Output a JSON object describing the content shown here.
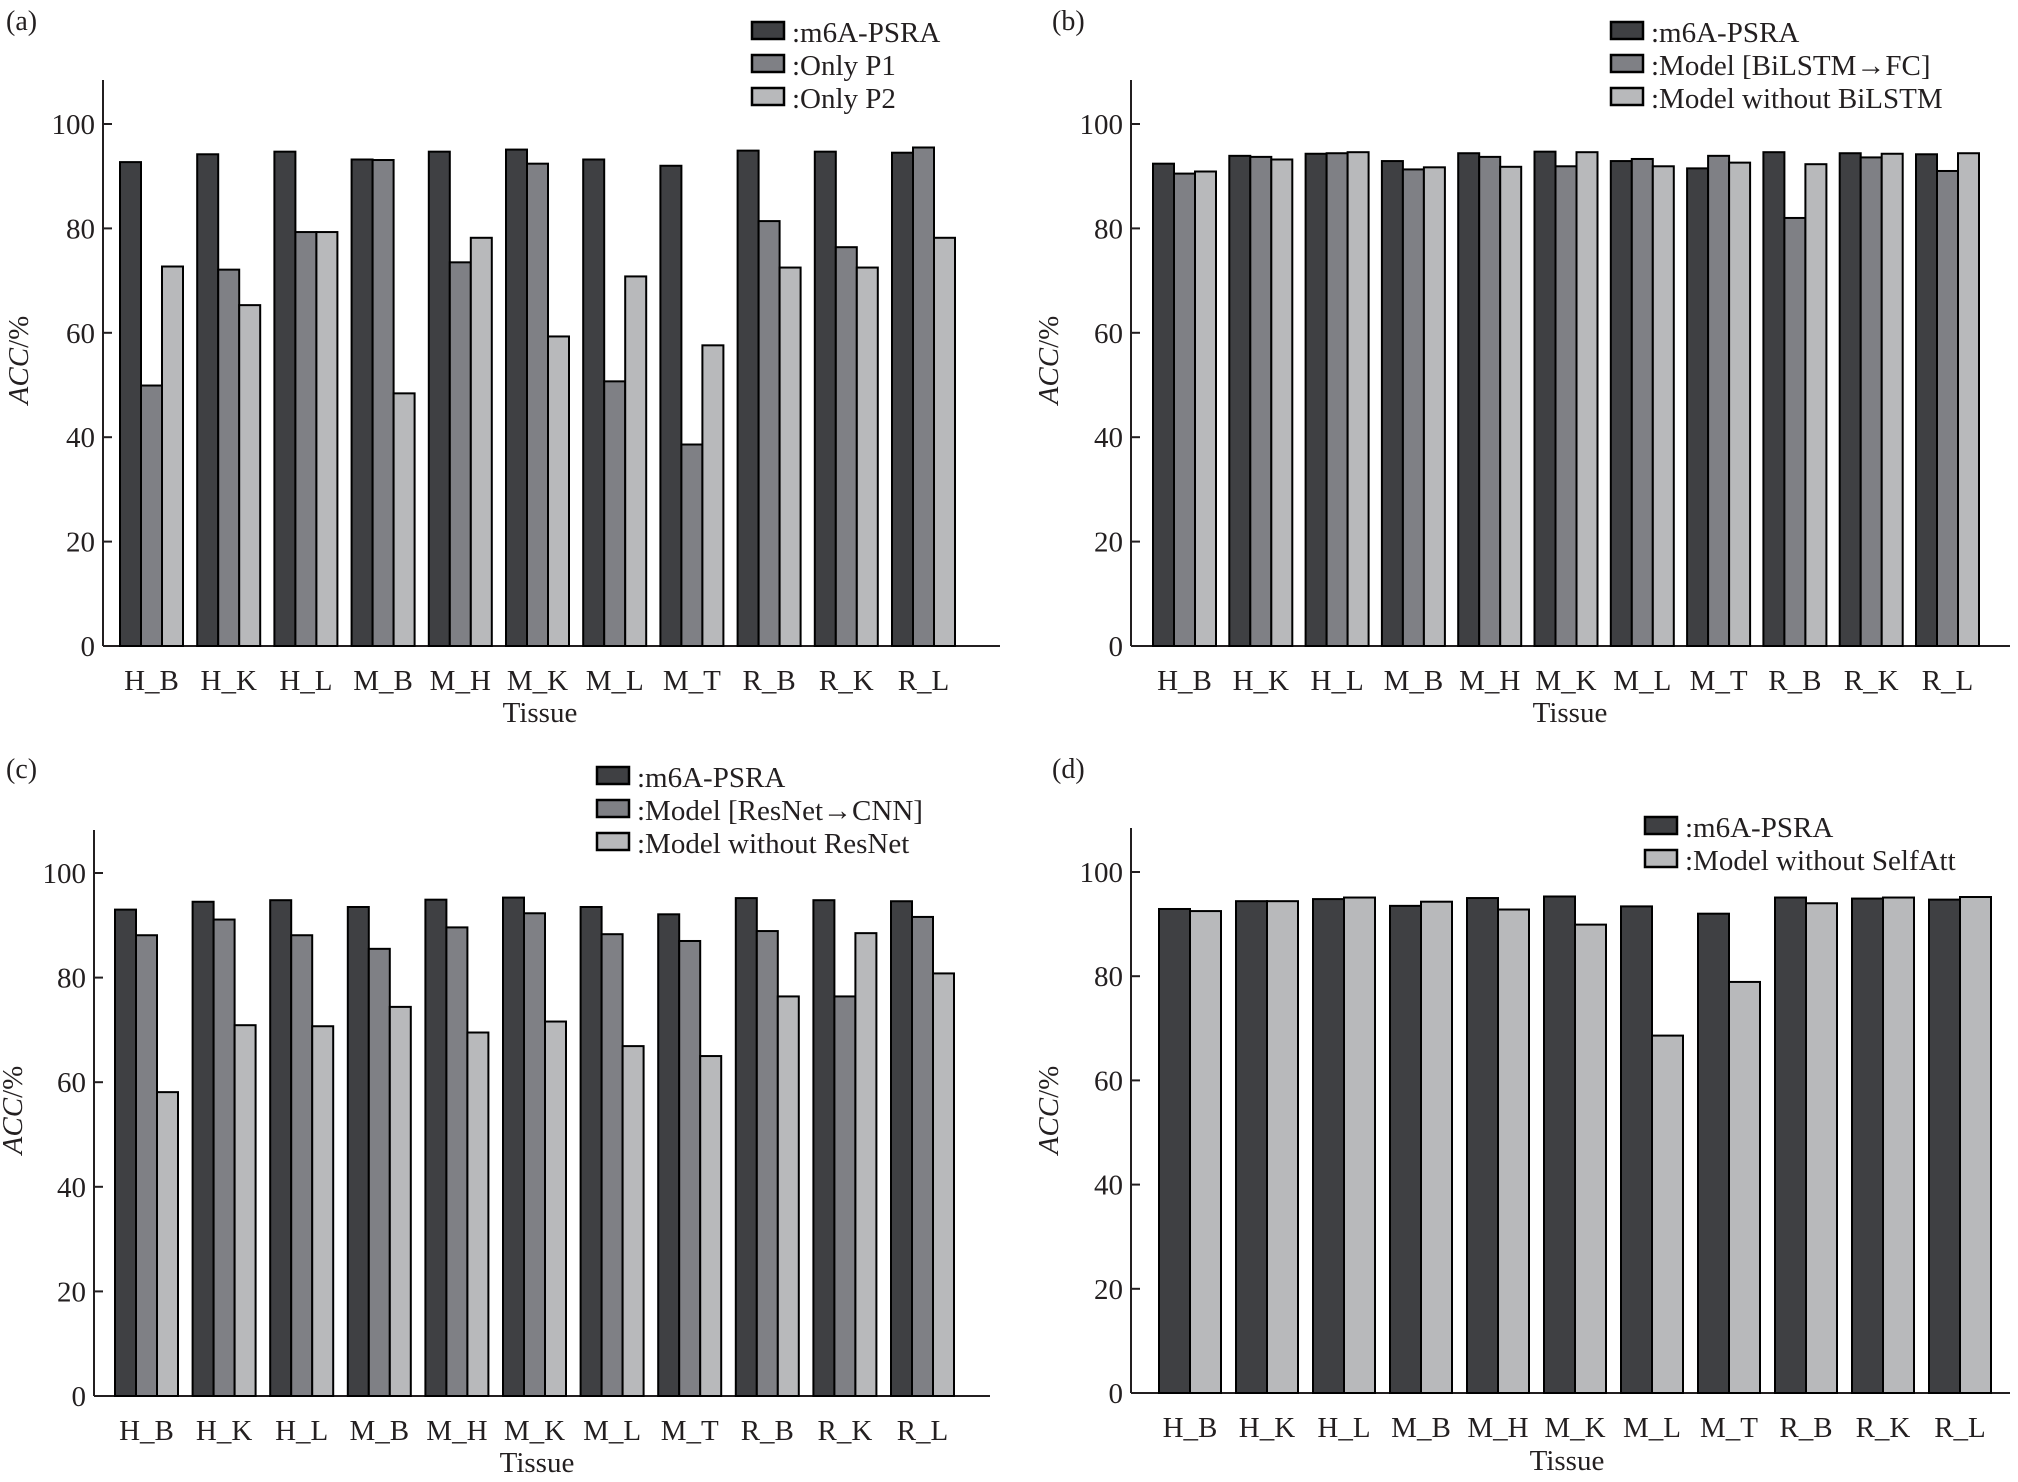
{
  "figure": {
    "colors": {
      "m6A-PSRA": "#3f4043",
      "variant_mid": "#7f8085",
      "variant_light": "#b8b9bb"
    }
  },
  "chart_data": [
    {
      "panel": "(a)",
      "type": "bar",
      "title": "",
      "xlabel": "Tissue",
      "ylabel": "ACC/%",
      "ylim": [
        0,
        108
      ],
      "yticks": [
        0,
        20,
        40,
        60,
        80,
        100
      ],
      "grid": false,
      "legend_position": "top-right",
      "categories": [
        "H_B",
        "H_K",
        "H_L",
        "M_B",
        "M_H",
        "M_K",
        "M_L",
        "M_T",
        "R_B",
        "R_K",
        "R_L"
      ],
      "series": [
        {
          "name": ":m6A-PSRA",
          "color": "#3f4043",
          "values": [
            92.7,
            94.2,
            94.7,
            93.2,
            94.7,
            95.1,
            93.2,
            92.0,
            94.9,
            94.7,
            94.5
          ]
        },
        {
          "name": ":Only P1",
          "color": "#7f8085",
          "values": [
            49.9,
            72.1,
            79.3,
            93.1,
            73.5,
            92.4,
            50.7,
            38.6,
            81.4,
            76.4,
            95.5
          ]
        },
        {
          "name": ":Only P2",
          "color": "#b8b9bb",
          "values": [
            72.7,
            65.3,
            79.3,
            48.4,
            78.2,
            59.3,
            70.8,
            57.6,
            72.5,
            72.5,
            78.2
          ]
        }
      ]
    },
    {
      "panel": "(b)",
      "type": "bar",
      "title": "",
      "xlabel": "Tissue",
      "ylabel": "ACC/%",
      "ylim": [
        0,
        108
      ],
      "yticks": [
        0,
        20,
        40,
        60,
        80,
        100
      ],
      "grid": false,
      "legend_position": "top-right",
      "categories": [
        "H_B",
        "H_K",
        "H_L",
        "M_B",
        "M_H",
        "M_K",
        "M_L",
        "M_T",
        "R_B",
        "R_K",
        "R_L"
      ],
      "series": [
        {
          "name": ":m6A-PSRA",
          "color": "#3f4043",
          "values": [
            92.4,
            93.9,
            94.3,
            92.9,
            94.4,
            94.7,
            92.9,
            91.5,
            94.6,
            94.4,
            94.2
          ]
        },
        {
          "name": ":Model [BiLSTM→FC]",
          "color": "#7f8085",
          "values": [
            90.5,
            93.7,
            94.4,
            91.3,
            93.7,
            91.9,
            93.3,
            93.9,
            82.0,
            93.6,
            91.0
          ]
        },
        {
          "name": ":Model without BiLSTM",
          "color": "#b8b9bb",
          "values": [
            90.9,
            93.2,
            94.6,
            91.7,
            91.8,
            94.6,
            91.9,
            92.6,
            92.3,
            94.3,
            94.4
          ]
        }
      ]
    },
    {
      "panel": "(c)",
      "type": "bar",
      "title": "",
      "xlabel": "Tissue",
      "ylabel": "ACC/%",
      "ylim": [
        0,
        108
      ],
      "yticks": [
        0,
        20,
        40,
        60,
        80,
        100
      ],
      "grid": false,
      "legend_position": "top-right",
      "categories": [
        "H_B",
        "H_K",
        "H_L",
        "M_B",
        "M_H",
        "M_K",
        "M_L",
        "M_T",
        "R_B",
        "R_K",
        "R_L"
      ],
      "series": [
        {
          "name": ":m6A-PSRA",
          "color": "#3f4043",
          "values": [
            93.0,
            94.5,
            94.8,
            93.5,
            94.9,
            95.3,
            93.5,
            92.1,
            95.2,
            94.8,
            94.6
          ]
        },
        {
          "name": ":Model [ResNet→CNN]",
          "color": "#7f8085",
          "values": [
            88.1,
            91.1,
            88.1,
            85.5,
            89.6,
            92.3,
            88.3,
            87.0,
            88.9,
            76.4,
            91.6
          ]
        },
        {
          "name": ":Model without ResNet",
          "color": "#b8b9bb",
          "values": [
            58.1,
            70.9,
            70.7,
            74.4,
            69.5,
            71.6,
            66.9,
            65.0,
            76.4,
            88.5,
            80.8
          ]
        }
      ]
    },
    {
      "panel": "(d)",
      "type": "bar",
      "title": "",
      "xlabel": "Tissue",
      "ylabel": "ACC/%",
      "ylim": [
        0,
        108
      ],
      "yticks": [
        0,
        20,
        40,
        60,
        80,
        100
      ],
      "grid": false,
      "legend_position": "top-right",
      "categories": [
        "H_B",
        "H_K",
        "H_L",
        "M_B",
        "M_H",
        "M_K",
        "M_L",
        "M_T",
        "R_B",
        "R_K",
        "R_L"
      ],
      "series": [
        {
          "name": ":m6A-PSRA",
          "color": "#3f4043",
          "values": [
            92.9,
            94.4,
            94.8,
            93.5,
            95.0,
            95.3,
            93.4,
            92.0,
            95.1,
            94.9,
            94.7
          ]
        },
        {
          "name": ":Model without SelfAtt",
          "color": "#b8b9bb",
          "values": [
            92.5,
            94.4,
            95.1,
            94.3,
            92.8,
            89.9,
            68.6,
            78.9,
            94.0,
            95.1,
            95.2
          ]
        }
      ]
    }
  ]
}
